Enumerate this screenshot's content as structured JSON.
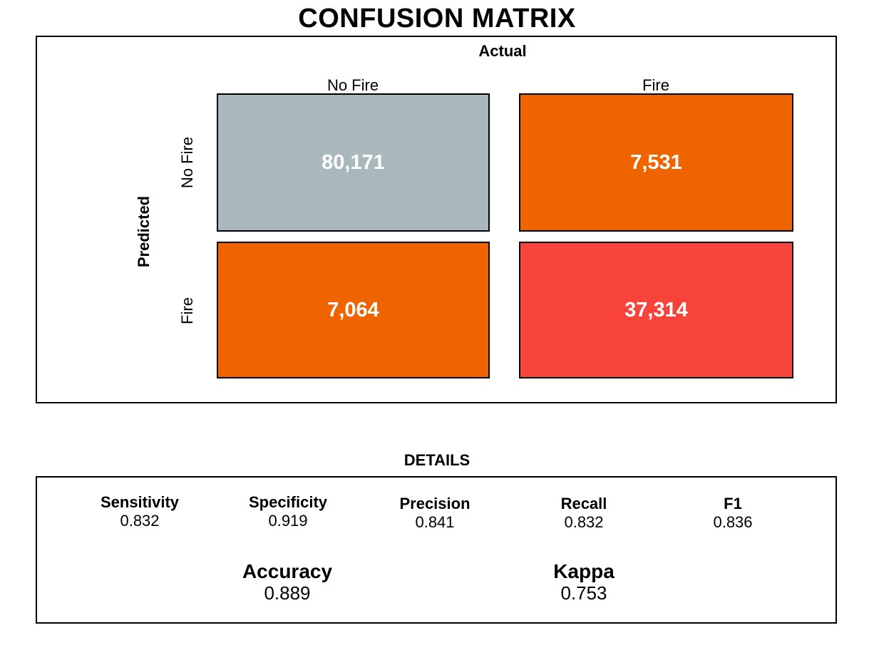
{
  "title": "CONFUSION MATRIX",
  "chart_data": {
    "type": "heatmap",
    "title": "CONFUSION MATRIX",
    "x_axis_label": "Actual",
    "y_axis_label": "Predicted",
    "columns": [
      "No Fire",
      "Fire"
    ],
    "rows": [
      "No Fire",
      "Fire"
    ],
    "cells": [
      {
        "predicted": "No Fire",
        "actual": "No Fire",
        "value": 80171,
        "label": "80,171",
        "color": "#a8b8bd"
      },
      {
        "predicted": "No Fire",
        "actual": "Fire",
        "value": 7531,
        "label": "7,531",
        "color": "#f06400"
      },
      {
        "predicted": "Fire",
        "actual": "No Fire",
        "value": 7064,
        "label": "7,064",
        "color": "#f06400"
      },
      {
        "predicted": "Fire",
        "actual": "Fire",
        "value": 37314,
        "label": "37,314",
        "color": "#f8433b"
      }
    ]
  },
  "details": {
    "title": "DETAILS",
    "metrics": [
      {
        "name": "Sensitivity",
        "value": "0.832"
      },
      {
        "name": "Specificity",
        "value": "0.919"
      },
      {
        "name": "Precision",
        "value": "0.841"
      },
      {
        "name": "Recall",
        "value": "0.832"
      },
      {
        "name": "F1",
        "value": "0.836"
      }
    ],
    "summary": [
      {
        "name": "Accuracy",
        "value": "0.889"
      },
      {
        "name": "Kappa",
        "value": "0.753"
      }
    ]
  }
}
